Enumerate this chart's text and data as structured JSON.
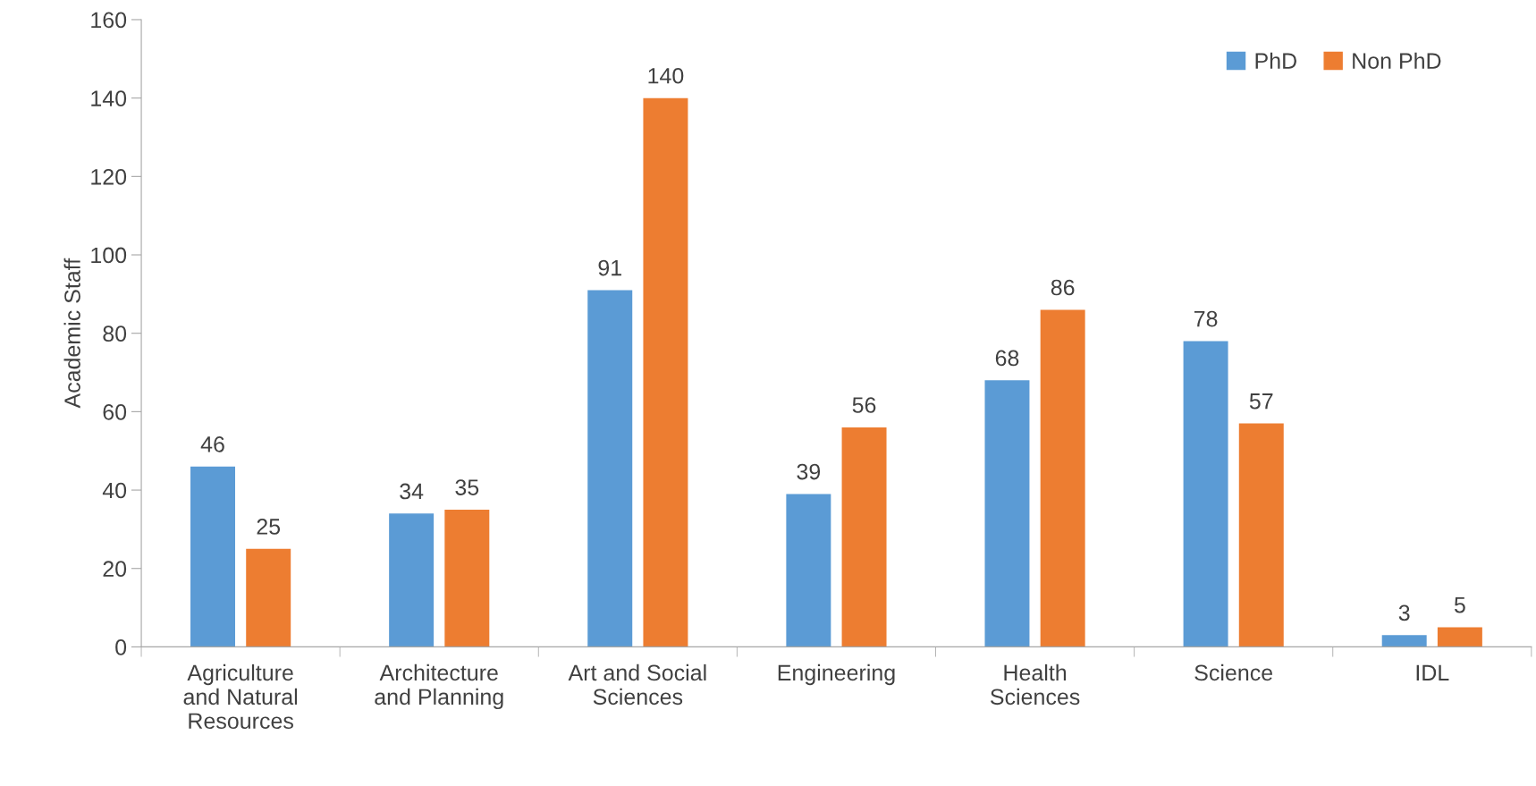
{
  "chart_data": {
    "type": "bar",
    "ylabel": "Academic Staff",
    "categories": [
      "Agriculture\nand Natural\nResources",
      "Architecture\nand Planning",
      "Art and Social\nSciences",
      "Engineering",
      "Health\nSciences",
      "Science",
      "IDL"
    ],
    "series": [
      {
        "name": "PhD",
        "color": "#5b9bd5",
        "values": [
          46,
          34,
          91,
          39,
          68,
          78,
          3
        ]
      },
      {
        "name": "Non PhD",
        "color": "#ed7d31",
        "values": [
          25,
          35,
          140,
          56,
          86,
          57,
          5
        ]
      }
    ],
    "ylim": [
      0,
      160
    ],
    "yticks": [
      0,
      20,
      40,
      60,
      80,
      100,
      120,
      140,
      160
    ],
    "data_labels": true,
    "grid": false,
    "legend": "top right"
  }
}
